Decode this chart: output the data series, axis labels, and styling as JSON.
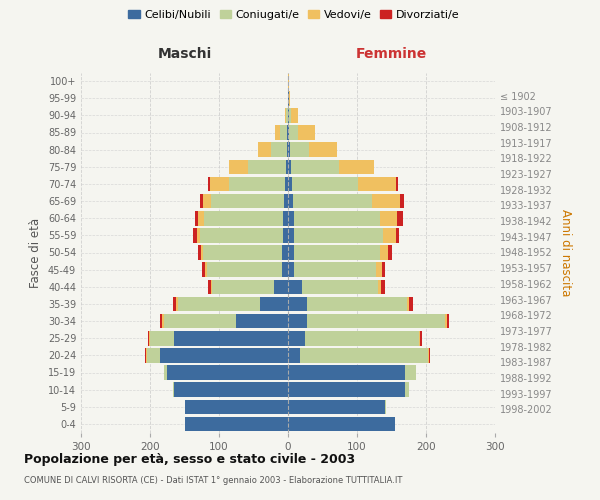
{
  "age_groups": [
    "0-4",
    "5-9",
    "10-14",
    "15-19",
    "20-24",
    "25-29",
    "30-34",
    "35-39",
    "40-44",
    "45-49",
    "50-54",
    "55-59",
    "60-64",
    "65-69",
    "70-74",
    "75-79",
    "80-84",
    "85-89",
    "90-94",
    "95-99",
    "100+"
  ],
  "birth_years": [
    "1998-2002",
    "1993-1997",
    "1988-1992",
    "1983-1987",
    "1978-1982",
    "1973-1977",
    "1968-1972",
    "1963-1967",
    "1958-1962",
    "1953-1957",
    "1948-1952",
    "1943-1947",
    "1938-1942",
    "1933-1937",
    "1928-1932",
    "1923-1927",
    "1918-1922",
    "1913-1917",
    "1908-1912",
    "1903-1907",
    "≤ 1902"
  ],
  "male_celibe": [
    150,
    150,
    165,
    175,
    185,
    165,
    75,
    40,
    20,
    8,
    8,
    7,
    7,
    6,
    5,
    3,
    2,
    1,
    0,
    0,
    0
  ],
  "male_coniugato": [
    0,
    0,
    2,
    5,
    20,
    35,
    105,
    120,
    90,
    110,
    115,
    120,
    115,
    105,
    80,
    55,
    22,
    10,
    3,
    0,
    0
  ],
  "male_vedovo": [
    0,
    0,
    0,
    0,
    1,
    2,
    2,
    2,
    2,
    2,
    3,
    5,
    8,
    12,
    28,
    28,
    20,
    8,
    2,
    0,
    0
  ],
  "male_divorziato": [
    0,
    0,
    0,
    0,
    1,
    1,
    3,
    5,
    4,
    4,
    5,
    5,
    5,
    5,
    3,
    0,
    0,
    0,
    0,
    0,
    0
  ],
  "female_celibe": [
    155,
    140,
    170,
    170,
    18,
    25,
    28,
    28,
    20,
    8,
    8,
    8,
    8,
    7,
    6,
    4,
    3,
    2,
    1,
    1,
    0
  ],
  "female_coniugato": [
    0,
    2,
    5,
    15,
    185,
    165,
    200,
    145,
    110,
    120,
    125,
    130,
    125,
    115,
    95,
    70,
    28,
    12,
    3,
    0,
    0
  ],
  "female_vedovo": [
    0,
    0,
    0,
    0,
    2,
    2,
    2,
    3,
    5,
    8,
    12,
    18,
    25,
    40,
    55,
    50,
    40,
    25,
    10,
    2,
    1
  ],
  "female_divorziato": [
    0,
    0,
    0,
    0,
    1,
    2,
    3,
    5,
    5,
    5,
    5,
    5,
    8,
    6,
    3,
    0,
    0,
    0,
    0,
    0,
    0
  ],
  "colors": {
    "celibe": "#3d6b9e",
    "coniugato": "#bfd19a",
    "vedovo": "#f0c060",
    "divorziato": "#cc2222"
  },
  "title": "Popolazione per età, sesso e stato civile - 2003",
  "subtitle": "COMUNE DI CALVI RISORTA (CE) - Dati ISTAT 1° gennaio 2003 - Elaborazione TUTTITALIA.IT",
  "xlabel_left": "Maschi",
  "xlabel_right": "Femmine",
  "ylabel_left": "Fasce di età",
  "ylabel_right": "Anni di nascita",
  "xlim": 300,
  "background_color": "#f5f5f0",
  "grid_color": "#cccccc"
}
